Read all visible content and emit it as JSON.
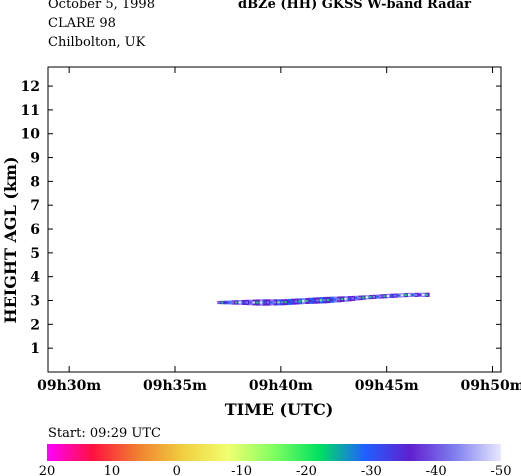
{
  "header": {
    "date": "October 5, 1998",
    "campaign": "CLARE 98",
    "location": "Chilbolton, UK",
    "title": "dBZe (HH)  GKSS  W-band Radar",
    "start": "Start: 09:29 UTC"
  },
  "chart_data": {
    "type": "heatmap",
    "title": "dBZe (HH)  GKSS  W-band Radar",
    "xlabel": "TIME (UTC)",
    "ylabel": "HEIGHT AGL (km)",
    "x_unit": "minutes after 09h29",
    "xlim": [
      0,
      21.4
    ],
    "ylim": [
      0,
      12.8
    ],
    "x_tick_labels": [
      "09h30m",
      "09h35m",
      "09h40m",
      "09h45m",
      "09h50m"
    ],
    "x_ticks": [
      1,
      6,
      11,
      16,
      21
    ],
    "y_ticks": [
      1,
      2,
      3,
      4,
      5,
      6,
      7,
      8,
      9,
      10,
      11,
      12
    ],
    "cloud_layer": [
      {
        "t": 8.0,
        "base_km": 2.85,
        "top_km": 2.98,
        "dbz": -33
      },
      {
        "t": 9.0,
        "base_km": 2.82,
        "top_km": 3.02,
        "dbz": -38
      },
      {
        "t": 10.0,
        "base_km": 2.78,
        "top_km": 3.05,
        "dbz": -40
      },
      {
        "t": 11.0,
        "base_km": 2.8,
        "top_km": 3.05,
        "dbz": -32
      },
      {
        "t": 12.0,
        "base_km": 2.85,
        "top_km": 3.1,
        "dbz": -36
      },
      {
        "t": 13.0,
        "base_km": 2.88,
        "top_km": 3.15,
        "dbz": -34
      },
      {
        "t": 14.0,
        "base_km": 2.95,
        "top_km": 3.18,
        "dbz": -38
      },
      {
        "t": 15.0,
        "base_km": 3.05,
        "top_km": 3.22,
        "dbz": -37
      },
      {
        "t": 16.0,
        "base_km": 3.1,
        "top_km": 3.28,
        "dbz": -39
      },
      {
        "t": 17.0,
        "base_km": 3.15,
        "top_km": 3.32,
        "dbz": -41
      },
      {
        "t": 18.0,
        "base_km": 3.15,
        "top_km": 3.33,
        "dbz": -40
      }
    ],
    "colorbar": {
      "ticks": [
        "20",
        "10",
        "0",
        "-10",
        "-20",
        "-30",
        "-40",
        "-50"
      ],
      "range": [
        20,
        -50
      ],
      "colors": [
        "#ff00ff",
        "#ff1040",
        "#f08030",
        "#f0d040",
        "#f0ff70",
        "#80ff60",
        "#00e060",
        "#2060ff",
        "#6020d0",
        "#8080f0",
        "#e8e8ff"
      ]
    }
  }
}
